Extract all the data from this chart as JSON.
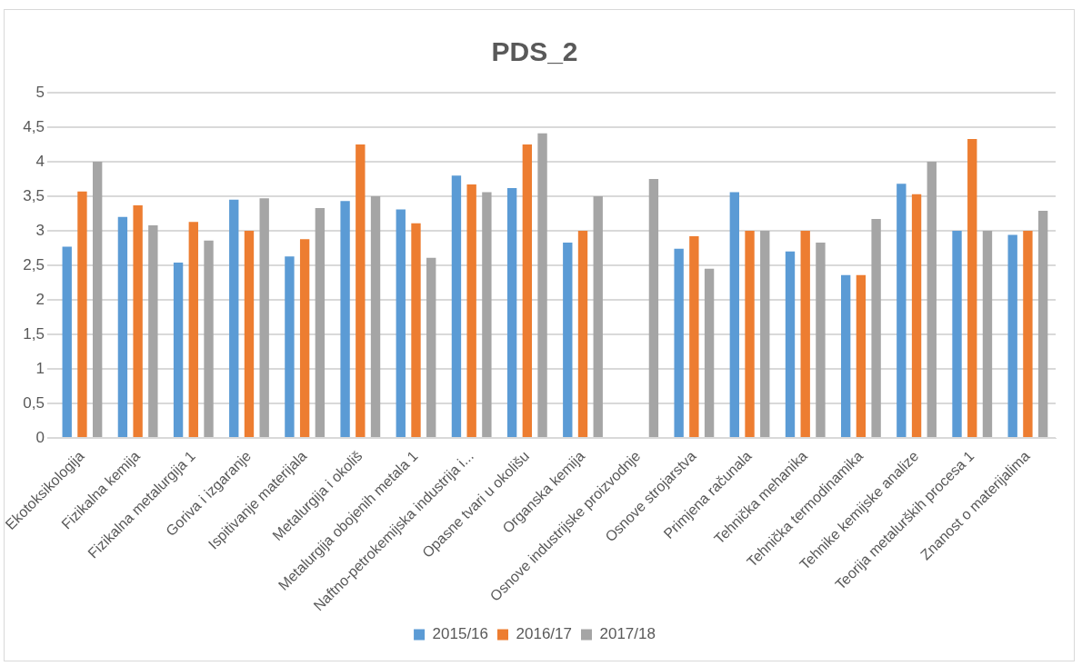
{
  "chart_data": {
    "type": "bar",
    "title": "PDS_2",
    "categories": [
      "Ekotoksikologija",
      "Fizikalna kemija",
      "Fizikalna metalurgija 1",
      "Goriva i izgaranje",
      "Ispitivanje materijala",
      "Metalurgija i okoliš",
      "Metalurgija obojenih metala 1",
      "Naftno-petrokemijska industrija i...",
      "Opasne tvari u okolišu",
      "Organska kemija",
      "Osnove industrijske proizvodnje",
      "Osnove strojarstva",
      "Primjena računala",
      "Tehnička mehanika",
      "Tehnička termodinamika",
      "Tehnike kemijske analize",
      "Teorija metalurških procesa 1",
      "Znanost o materijalima"
    ],
    "series": [
      {
        "name": "2015/16",
        "color": "#5b9bd5",
        "values": [
          2.77,
          3.2,
          2.54,
          3.45,
          2.63,
          3.43,
          3.31,
          3.8,
          3.62,
          2.83,
          null,
          2.74,
          3.56,
          2.7,
          2.36,
          3.68,
          3.0,
          2.94
        ]
      },
      {
        "name": "2016/17",
        "color": "#ed7d31",
        "values": [
          3.57,
          3.37,
          3.13,
          3.0,
          2.88,
          4.25,
          3.11,
          3.67,
          4.25,
          3.0,
          null,
          2.92,
          3.0,
          3.0,
          2.36,
          3.53,
          4.33,
          3.0
        ]
      },
      {
        "name": "2017/18",
        "color": "#a5a5a5",
        "values": [
          4.0,
          3.08,
          2.86,
          3.47,
          3.33,
          3.5,
          2.61,
          3.56,
          4.41,
          3.5,
          3.75,
          2.45,
          3.0,
          2.83,
          3.17,
          4.0,
          3.0,
          3.29
        ]
      }
    ],
    "ylim": [
      0,
      5
    ],
    "yticks": [
      0,
      {
        "value": 0.5,
        "label": "0,5"
      },
      1,
      {
        "value": 1.5,
        "label": "1,5"
      },
      2,
      {
        "value": 2.5,
        "label": "2,5"
      },
      3,
      {
        "value": 3.5,
        "label": "3,5"
      },
      4,
      {
        "value": 4.5,
        "label": "4,5"
      },
      5
    ],
    "grid": "y",
    "legend": "bottom"
  }
}
